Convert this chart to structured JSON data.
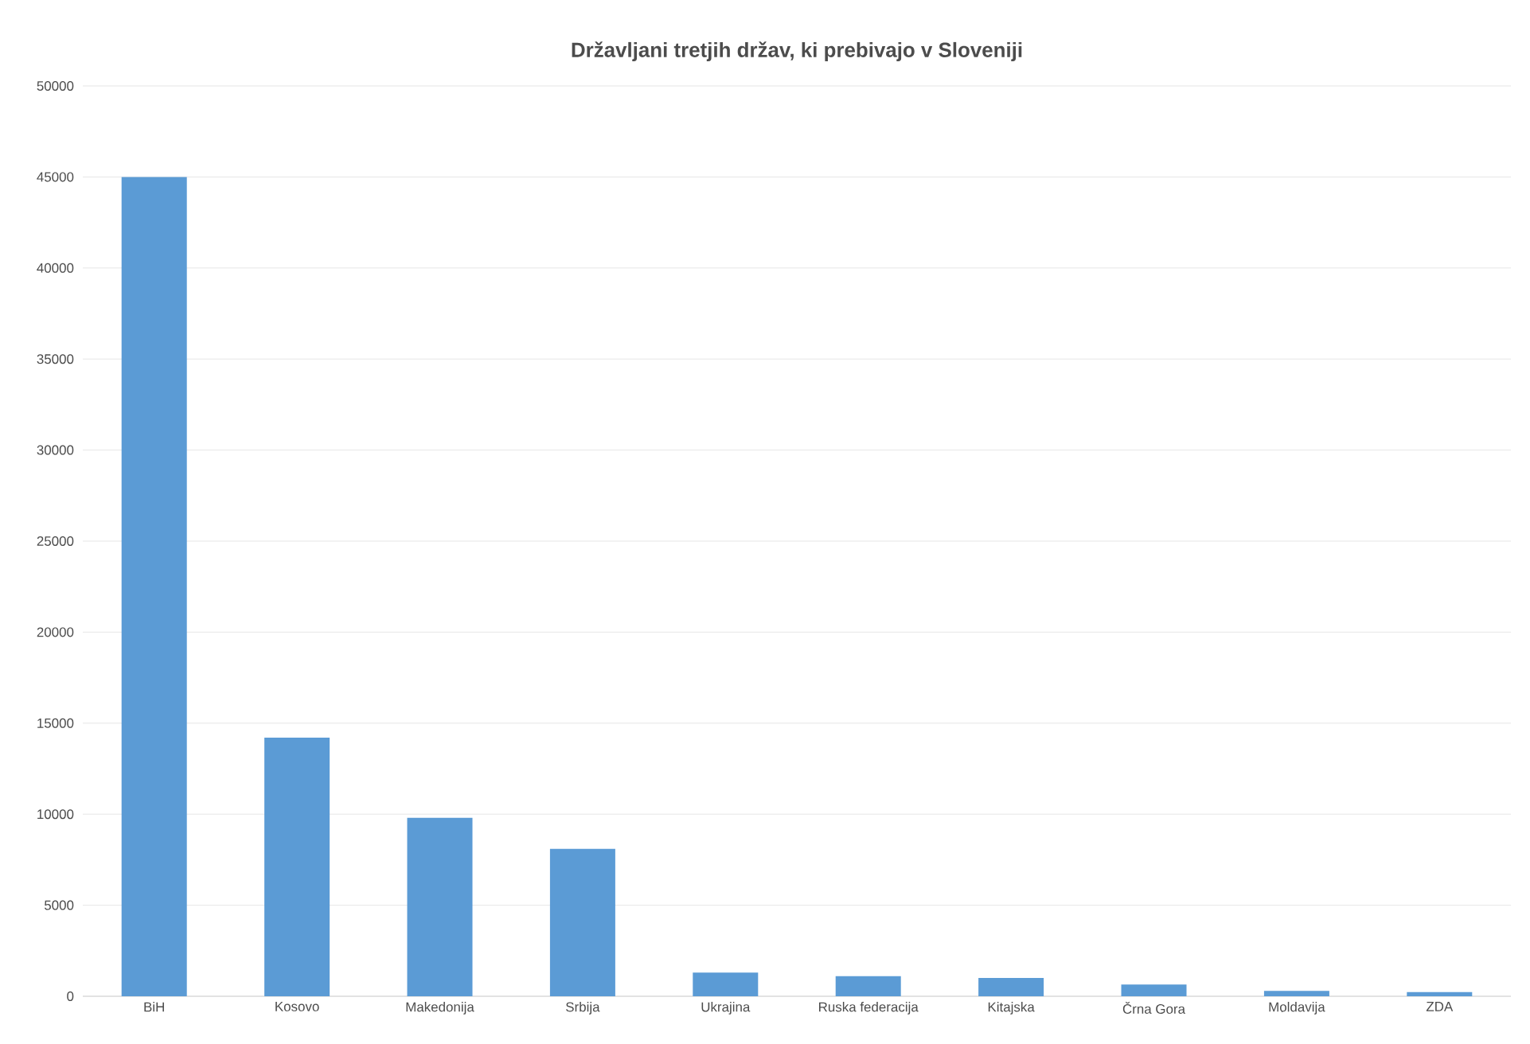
{
  "chart_data": {
    "type": "bar",
    "title": "Državljani tretjih držav, ki prebivajo v Sloveniji",
    "categories": [
      "BiH",
      "Kosovo",
      "Makedonija",
      "Srbija",
      "Ukrajina",
      "Ruska federacija",
      "Kitajska",
      "Črna Gora",
      "Moldavija",
      "ZDA"
    ],
    "values": [
      45000,
      14200,
      9800,
      8100,
      1300,
      1100,
      1000,
      650,
      300,
      230
    ],
    "color": "#5b9bd5",
    "ylim": [
      0,
      50000
    ],
    "yticks": [
      0,
      5000,
      10000,
      15000,
      20000,
      25000,
      30000,
      35000,
      40000,
      45000,
      50000
    ],
    "grid": "y"
  }
}
